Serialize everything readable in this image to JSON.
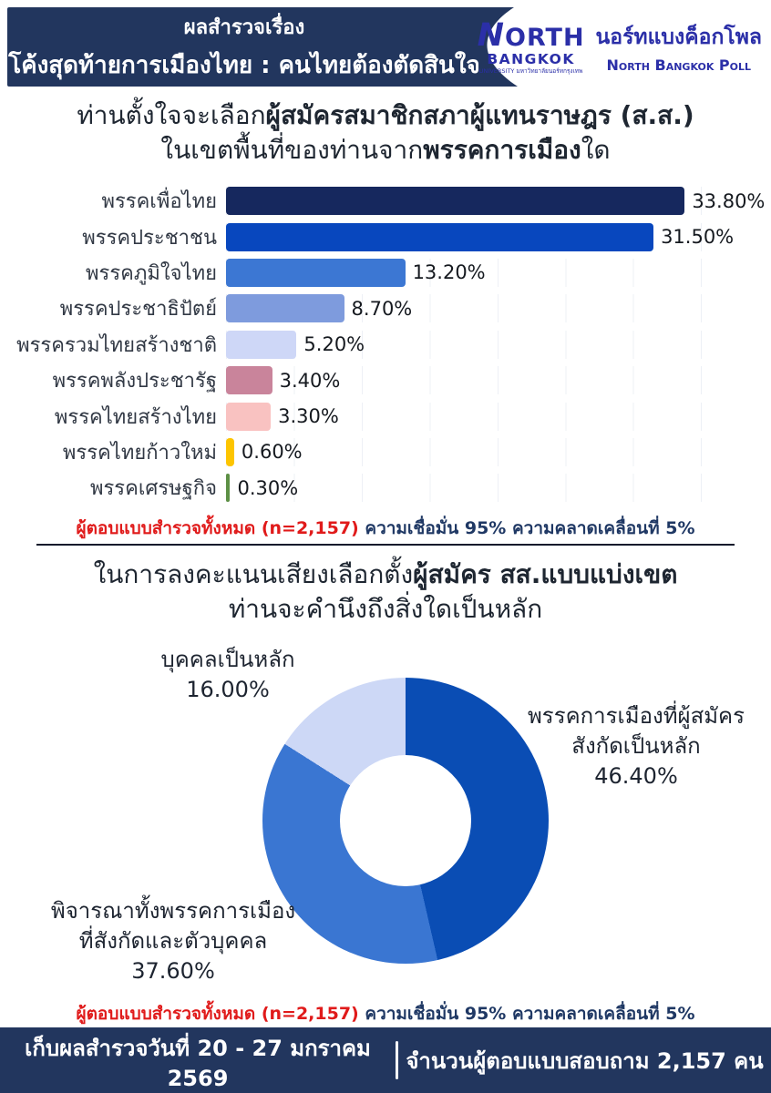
{
  "header": {
    "title_line1": "ผลสำรวจเรื่อง",
    "title_line2": "โค้งสุดท้ายการเมืองไทย : คนไทยต้องตัดสินใจ",
    "bg_color": "#22365E",
    "logo": {
      "name_top": "NORTH",
      "name_bottom": "BANGKOK",
      "university_line": "UNIVERSITY มหาวิทยาลัยนอร์ทกรุงเทพ",
      "poll_name_th": "นอร์ทแบงค็อกโพล",
      "poll_name_en": "North Bangkok Poll",
      "color": "#2B2FA8"
    }
  },
  "question1": {
    "line1_normal": "ท่านตั้งใจจะเลือก",
    "line1_bold": "ผู้สมัครสมาชิกสภาผู้แทนราษฎร (ส.ส.)",
    "line2_normal_a": "ในเขตพื้นที่ของท่านจาก",
    "line2_bold": "พรรคการเมือง",
    "line2_normal_b": "ใด"
  },
  "question2": {
    "line1_normal": "ในการลงคะแนนเสียงเลือกตั้ง",
    "line1_bold": "ผู้สมัคร สส.แบบแบ่งเขต",
    "line2_normal": "ท่านจะคำนึงถึงสิ่งใดเป็นหลัก"
  },
  "note": {
    "red_part": "ผู้ตอบแบบสำรวจทั้งหมด (n=2,157)",
    "navy_part": " ความเชื่อมั่น 95% ความคลาดเคลื่อนที่ 5%",
    "red_color": "#E01A1A",
    "navy_color": "#1F3864"
  },
  "chart_data": [
    {
      "type": "bar",
      "orientation": "horizontal",
      "title": "ท่านตั้งใจจะเลือกผู้สมัครสมาชิกสภาผู้แทนราษฎร (ส.ส.) ในเขตพื้นที่ของท่านจากพรรคการเมืองใด",
      "categories": [
        "พรรคเพื่อไทย",
        "พรรคประชาชน",
        "พรรคภูมิใจไทย",
        "พรรคประชาธิปัตย์",
        "พรรครวมไทยสร้างชาติ",
        "พรรคพลังประชารัฐ",
        "พรรคไทยสร้างไทย",
        "พรรคไทยก้าวใหม่",
        "พรรคเศรษฐกิจ"
      ],
      "values": [
        33.8,
        31.5,
        13.2,
        8.7,
        5.2,
        3.4,
        3.3,
        0.6,
        0.3
      ],
      "value_labels": [
        "33.80%",
        "31.50%",
        "13.20%",
        "8.70%",
        "5.20%",
        "3.40%",
        "3.30%",
        "0.60%",
        "0.30%"
      ],
      "bar_colors": [
        "#16285E",
        "#0847BE",
        "#3C77D3",
        "#7E9BDD",
        "#CED7F7",
        "#C9849B",
        "#F9C2C1",
        "#FDC500",
        "#5D9045"
      ],
      "xlabel": "",
      "ylabel": "",
      "xlim": [
        0,
        36.8
      ],
      "grid": true,
      "gridline_step_percent": 5,
      "legend": false
    },
    {
      "type": "donut",
      "title": "ในการลงคะแนนเสียงเลือกตั้งผู้สมัคร สส.แบบแบ่งเขต ท่านจะคำนึงถึงสิ่งใดเป็นหลัก",
      "start_angle_deg": 0,
      "direction": "clockwise",
      "hole_ratio": 0.46,
      "segments": [
        {
          "label_lines": [
            "พรรคการเมืองที่ผู้สมัคร",
            "สังกัดเป็นหลัก"
          ],
          "value": 46.4,
          "value_label": "46.40%",
          "color": "#0A4DB4"
        },
        {
          "label_lines": [
            "พิจารณาทั้งพรรคการเมือง",
            "ที่สังกัดและตัวบุคคล"
          ],
          "value": 37.6,
          "value_label": "37.60%",
          "color": "#3A76D2"
        },
        {
          "label_lines": [
            "บุคคลเป็นหลัก"
          ],
          "value": 16.0,
          "value_label": "16.00%",
          "color": "#CDD8F6"
        }
      ],
      "legend": false
    }
  ],
  "footer": {
    "left_text": "เก็บผลสำรวจวันที่ 20 - 27 มกราคม 2569",
    "right_text": "จำนวนผู้ตอบแบบสอบถาม 2,157 คน",
    "bg_color": "#22365E"
  }
}
